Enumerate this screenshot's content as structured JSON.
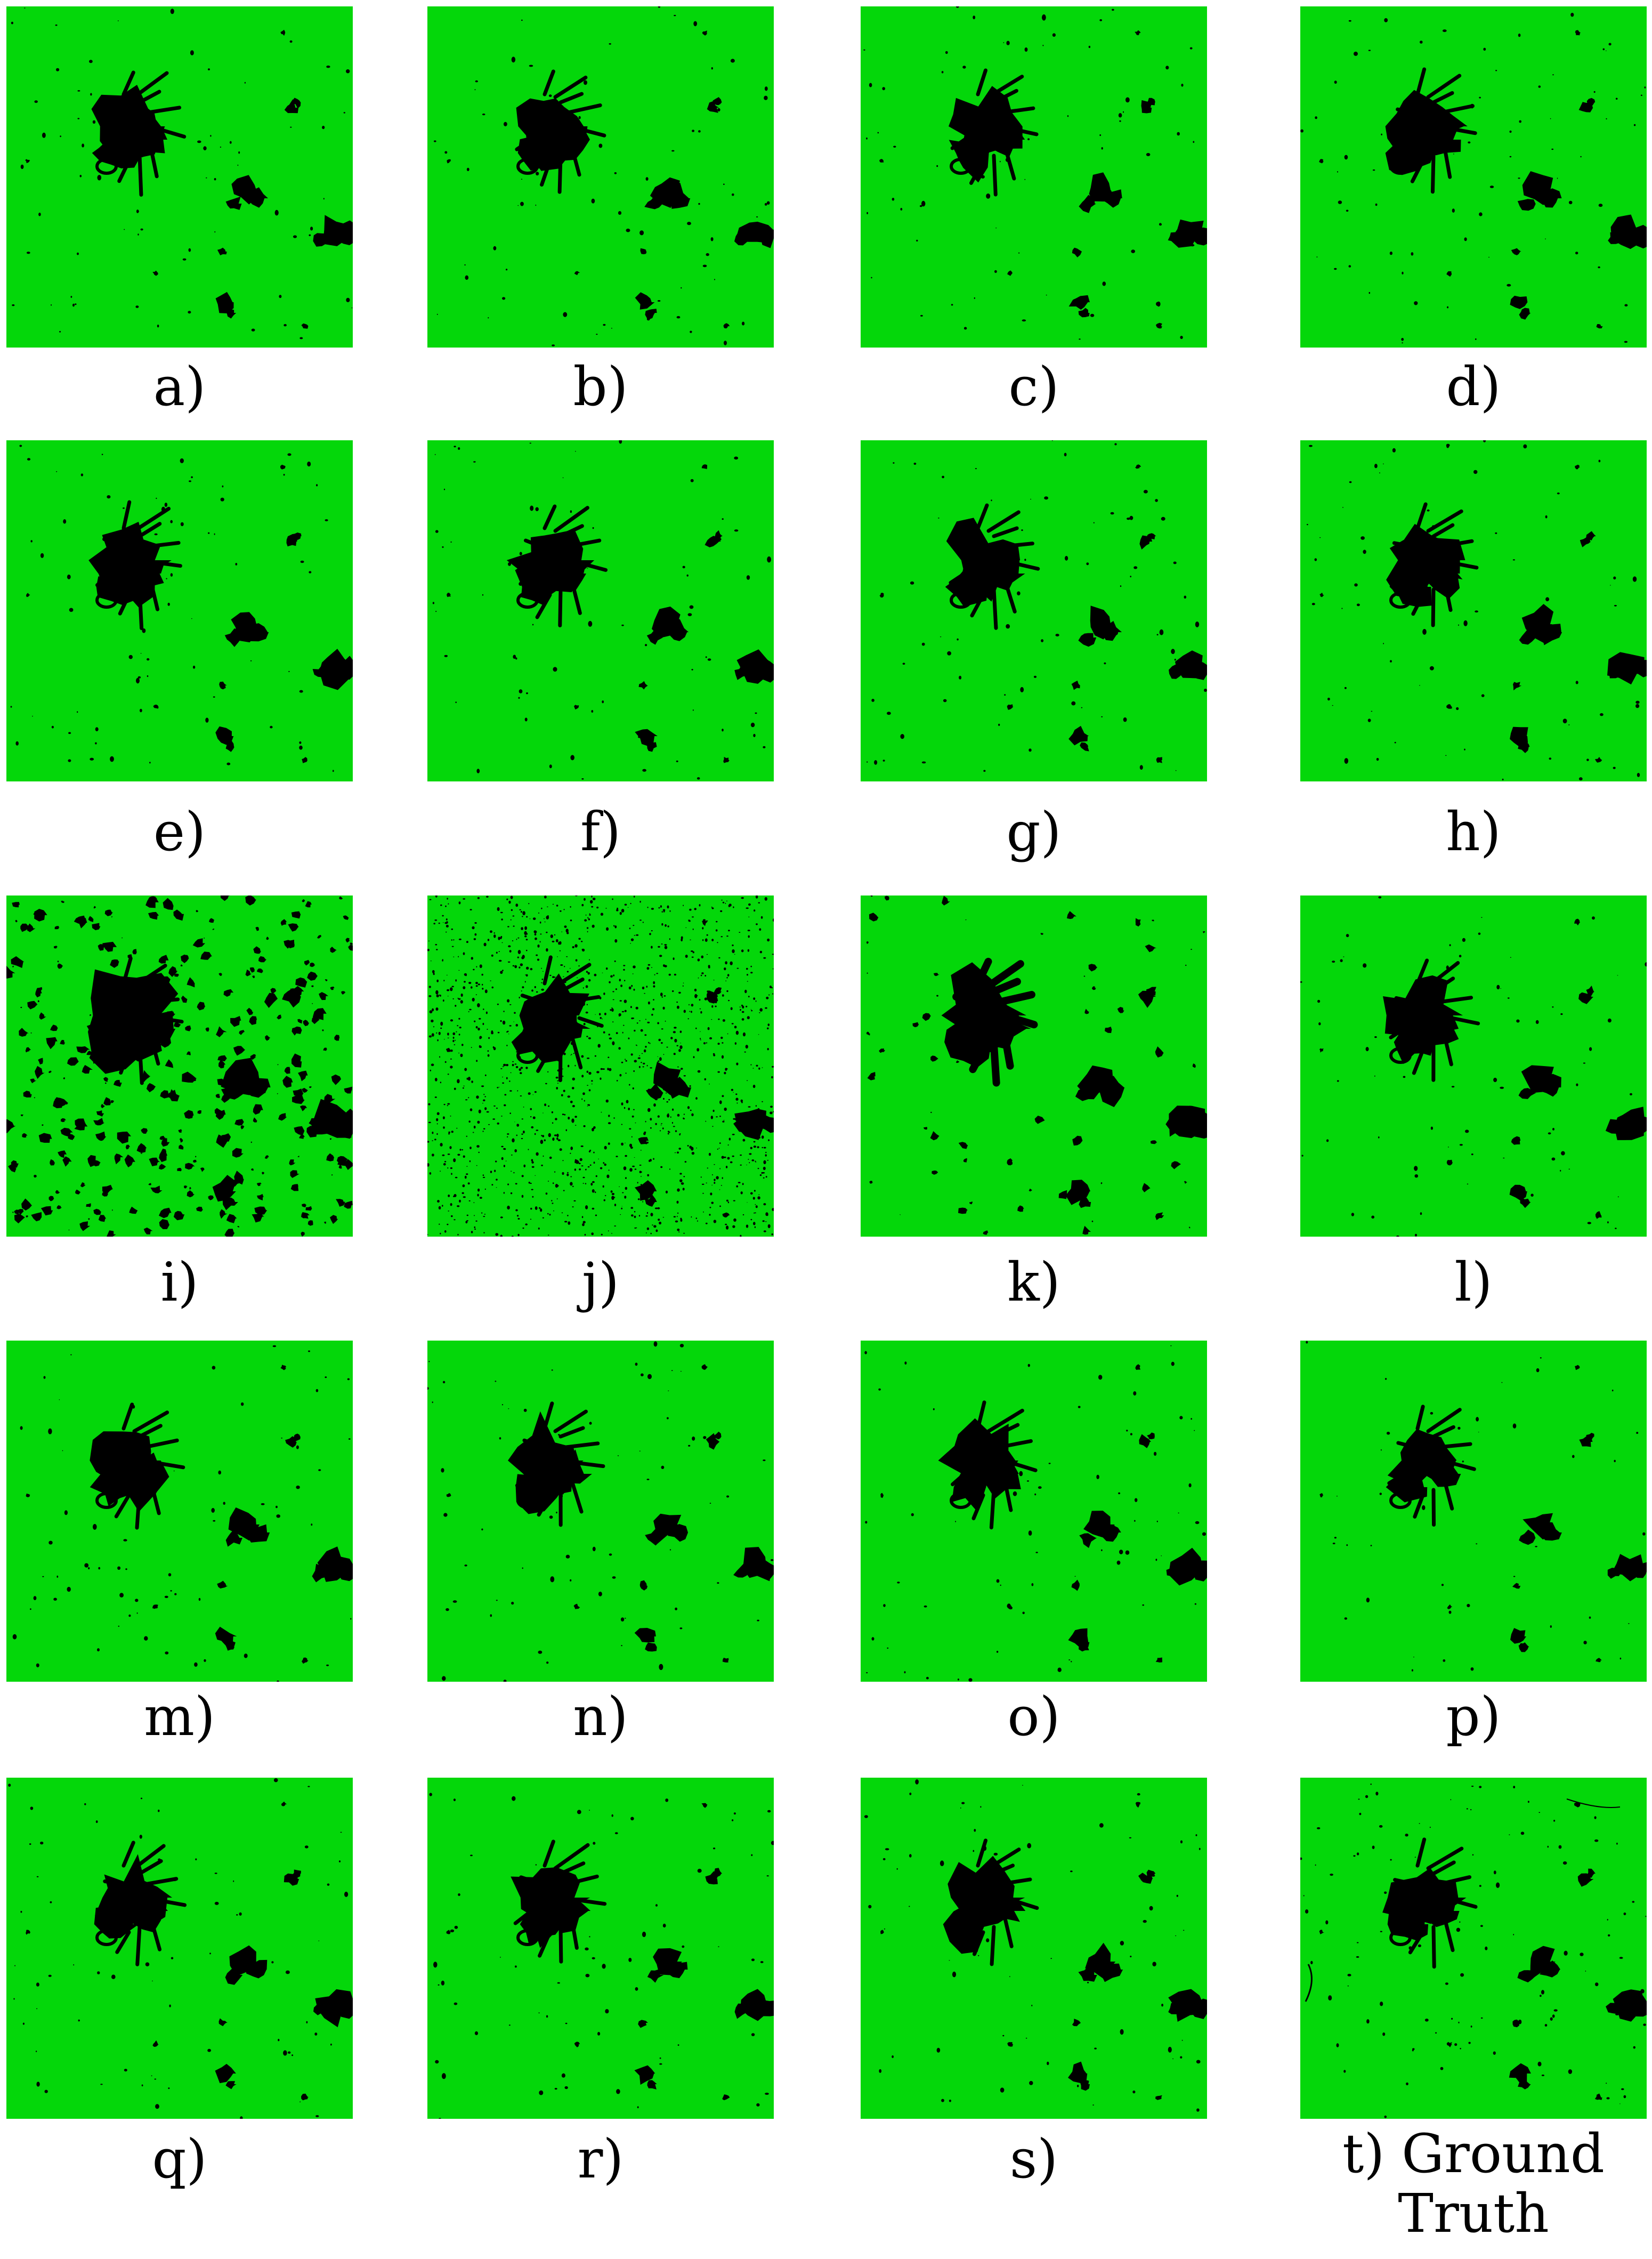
{
  "colors": {
    "land": "#04d70a",
    "water": "#000000",
    "background": "#ffffff"
  },
  "panels": [
    {
      "label": "a)",
      "variant": "standard"
    },
    {
      "label": "b)",
      "variant": "standard"
    },
    {
      "label": "c)",
      "variant": "standard"
    },
    {
      "label": "d)",
      "variant": "standard"
    },
    {
      "label": "e)",
      "variant": "standard"
    },
    {
      "label": "f)",
      "variant": "standard"
    },
    {
      "label": "g)",
      "variant": "standard"
    },
    {
      "label": "h)",
      "variant": "standard"
    },
    {
      "label": "i)",
      "variant": "heavy-noise"
    },
    {
      "label": "j)",
      "variant": "speckle-noise"
    },
    {
      "label": "k)",
      "variant": "blobby"
    },
    {
      "label": "l)",
      "variant": "standard"
    },
    {
      "label": "m)",
      "variant": "standard"
    },
    {
      "label": "n)",
      "variant": "standard"
    },
    {
      "label": "o)",
      "variant": "standard"
    },
    {
      "label": "p)",
      "variant": "sparse"
    },
    {
      "label": "q)",
      "variant": "standard"
    },
    {
      "label": "r)",
      "variant": "standard"
    },
    {
      "label": "s)",
      "variant": "standard"
    },
    {
      "label": "t) Ground\nTruth",
      "variant": "ground-truth"
    }
  ]
}
